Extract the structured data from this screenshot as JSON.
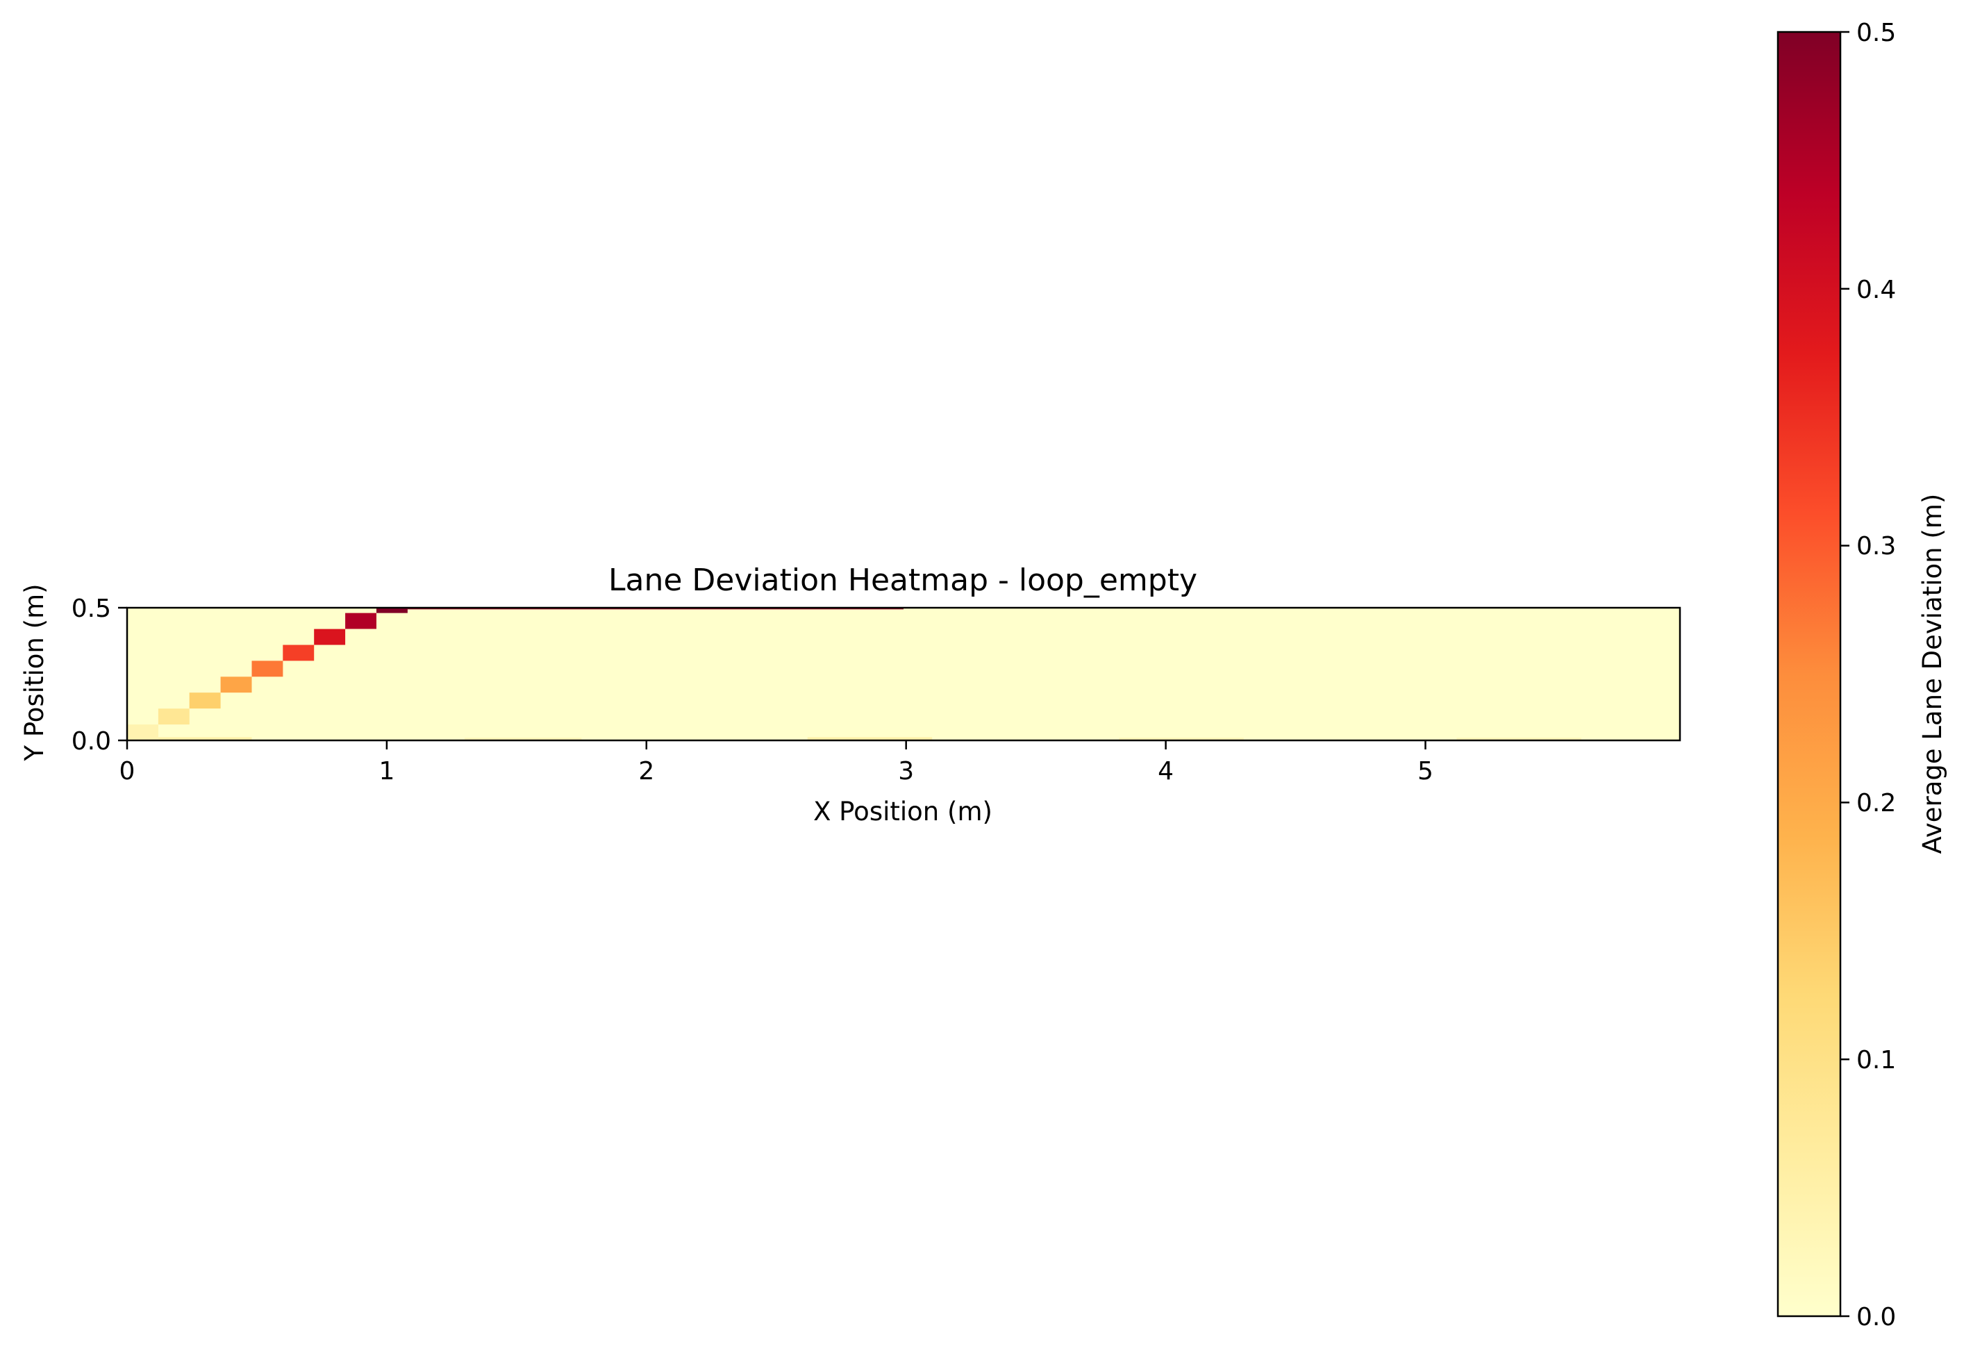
{
  "chart_data": {
    "type": "heatmap",
    "title": "Lane Deviation Heatmap - loop_empty",
    "xlabel": "X Position (m)",
    "ylabel": "Y Position (m)",
    "xlim": [
      0,
      5.98
    ],
    "ylim": [
      0,
      0.5
    ],
    "x_ticks": [
      "0",
      "1",
      "2",
      "3",
      "4",
      "5"
    ],
    "y_ticks": [
      "0.0",
      "0.5"
    ],
    "grid": false,
    "colormap": "YlOrRd",
    "background_value": 0.0,
    "colorbar": {
      "label": "Average Lane Deviation (m)",
      "range": [
        0,
        0.5
      ],
      "ticks": [
        "0.0",
        "0.1",
        "0.2",
        "0.3",
        "0.4",
        "0.5"
      ]
    },
    "cells": [
      {
        "x0": 0.0,
        "x1": 0.12,
        "y0": 0.0,
        "y1": 0.06,
        "value": 0.04
      },
      {
        "x0": 0.12,
        "x1": 0.24,
        "y0": 0.06,
        "y1": 0.12,
        "value": 0.08
      },
      {
        "x0": 0.24,
        "x1": 0.36,
        "y0": 0.12,
        "y1": 0.18,
        "value": 0.14
      },
      {
        "x0": 0.36,
        "x1": 0.48,
        "y0": 0.18,
        "y1": 0.24,
        "value": 0.21
      },
      {
        "x0": 0.48,
        "x1": 0.6,
        "y0": 0.24,
        "y1": 0.3,
        "value": 0.27
      },
      {
        "x0": 0.6,
        "x1": 0.72,
        "y0": 0.3,
        "y1": 0.36,
        "value": 0.33
      },
      {
        "x0": 0.72,
        "x1": 0.84,
        "y0": 0.36,
        "y1": 0.42,
        "value": 0.39
      },
      {
        "x0": 0.84,
        "x1": 0.96,
        "y0": 0.42,
        "y1": 0.48,
        "value": 0.45
      },
      {
        "x0": 0.96,
        "x1": 1.08,
        "y0": 0.48,
        "y1": 0.5,
        "value": 0.5
      },
      {
        "x0": 1.08,
        "x1": 2.99,
        "y0": 0.494,
        "y1": 0.5,
        "value": 0.48
      },
      {
        "x0": 0.12,
        "x1": 0.48,
        "y0": 0.0,
        "y1": 0.012,
        "value": 0.05
      },
      {
        "x0": 1.3,
        "x1": 1.75,
        "y0": 0.0,
        "y1": 0.01,
        "value": 0.03
      },
      {
        "x0": 2.62,
        "x1": 3.1,
        "y0": 0.0,
        "y1": 0.012,
        "value": 0.05
      },
      {
        "x0": 3.82,
        "x1": 4.3,
        "y0": 0.0,
        "y1": 0.01,
        "value": 0.03
      },
      {
        "x0": 5.12,
        "x1": 5.6,
        "y0": 0.0,
        "y1": 0.01,
        "value": 0.03
      }
    ]
  }
}
